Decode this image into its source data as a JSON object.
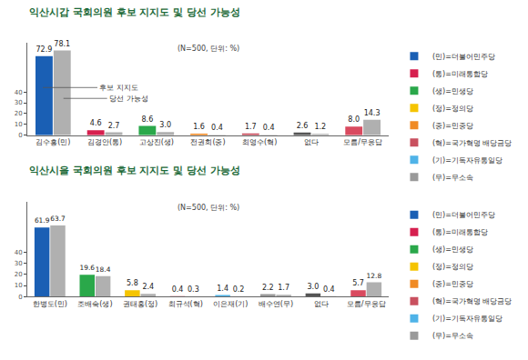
{
  "chart_data": [
    {
      "type": "bar",
      "title": "익산시갑 국회의원 후보 지지도 및 당선 가능성",
      "subtitle": "(N=500, 단위: %)",
      "categories": [
        "김수흥(민)",
        "김경안(통)",
        "고상진(생)",
        "전권희(중)",
        "최영수(혁)",
        "없다",
        "모름/무응답"
      ],
      "series": [
        {
          "name": "후보 지지도",
          "colors": [
            "#1a5fb4",
            "#d6204f",
            "#2aa84a",
            "#f08a24",
            "#c9505f",
            "#555555",
            "#d94a5f"
          ],
          "values": [
            72.9,
            4.6,
            8.6,
            1.6,
            1.7,
            2.6,
            8.0
          ],
          "value_labels": [
            "72.9",
            "4.6",
            "8.6",
            "1.6",
            "1.7",
            "2.6",
            "8.0"
          ]
        },
        {
          "name": "당선 가능성",
          "color": "#b0b0b0",
          "values": [
            78.1,
            2.7,
            3.0,
            0.4,
            0.4,
            1.2,
            14.3
          ],
          "value_labels": [
            "78.1",
            "2.7",
            "3.0",
            "0.4",
            "0.4",
            "1.2",
            "14.3"
          ]
        }
      ],
      "annotations": [
        {
          "text": "후보 지지도"
        },
        {
          "text": "당선 가능성"
        }
      ],
      "legend_items": [
        {
          "label": "(민)=더불어민주당",
          "color": "#1a5fb4"
        },
        {
          "label": "(통)=미래통합당",
          "color": "#d6204f"
        },
        {
          "label": "(생)=민생당",
          "color": "#2aa84a"
        },
        {
          "label": "(정)=정의당",
          "color": "#f5c400"
        },
        {
          "label": "(중)=민중당",
          "color": "#f08a24"
        },
        {
          "label": "(혁)=국가혁명 배당금당",
          "color": "#c9505f"
        },
        {
          "label": "(기)=기독자유통일당",
          "color": "#4fb3e8"
        },
        {
          "label": "(무)=무소속",
          "color": "#9a9a9a"
        }
      ],
      "legend": "right",
      "ylim": [
        0,
        85
      ],
      "yticks": [
        0,
        10,
        20,
        30,
        40
      ],
      "grid": false,
      "data_labels": true
    },
    {
      "type": "bar",
      "title": "익산시을 국회의원 후보 지지도 및 당선 가능성",
      "subtitle": "(N=500, 단위: %)",
      "categories": [
        "한병도(민)",
        "조배숙(생)",
        "권태홍(정)",
        "최규석(혁)",
        "이은재(기)",
        "배수연(무)",
        "없다",
        "모름/무응답"
      ],
      "series": [
        {
          "name": "후보 지지도",
          "colors": [
            "#1a5fb4",
            "#2aa84a",
            "#f5c400",
            "#c9505f",
            "#4fb3e8",
            "#9a9a9a",
            "#555555",
            "#d94a5f"
          ],
          "values": [
            61.9,
            19.6,
            5.8,
            0.4,
            1.4,
            2.2,
            3.0,
            5.7
          ],
          "value_labels": [
            "61.9",
            "19.6",
            "5.8",
            "0.4",
            "1.4",
            "2.2",
            "3.0",
            "5.7"
          ]
        },
        {
          "name": "당선 가능성",
          "color": "#b0b0b0",
          "values": [
            63.7,
            18.4,
            2.4,
            0.3,
            0.2,
            1.7,
            0.4,
            12.8
          ],
          "value_labels": [
            "63.7",
            "18.4",
            "2.4",
            "0.3",
            "0.2",
            "1.7",
            "0.4",
            "12.8"
          ]
        }
      ],
      "legend_items": [
        {
          "label": "(민)=더불어민주당",
          "color": "#1a5fb4"
        },
        {
          "label": "(통)=미래통합당",
          "color": "#d6204f"
        },
        {
          "label": "(생)=민생당",
          "color": "#2aa84a"
        },
        {
          "label": "(정)=정의당",
          "color": "#f5c400"
        },
        {
          "label": "(중)=민중당",
          "color": "#f08a24"
        },
        {
          "label": "(혁)=국가혁명 배당금당",
          "color": "#c9505f"
        },
        {
          "label": "(기)=기독자유통일당",
          "color": "#4fb3e8"
        },
        {
          "label": "(무)=무소속",
          "color": "#9a9a9a"
        }
      ],
      "legend": "right",
      "ylim": [
        0,
        85
      ],
      "yticks": [
        0,
        10,
        20,
        30,
        40
      ],
      "grid": false,
      "data_labels": true
    }
  ]
}
